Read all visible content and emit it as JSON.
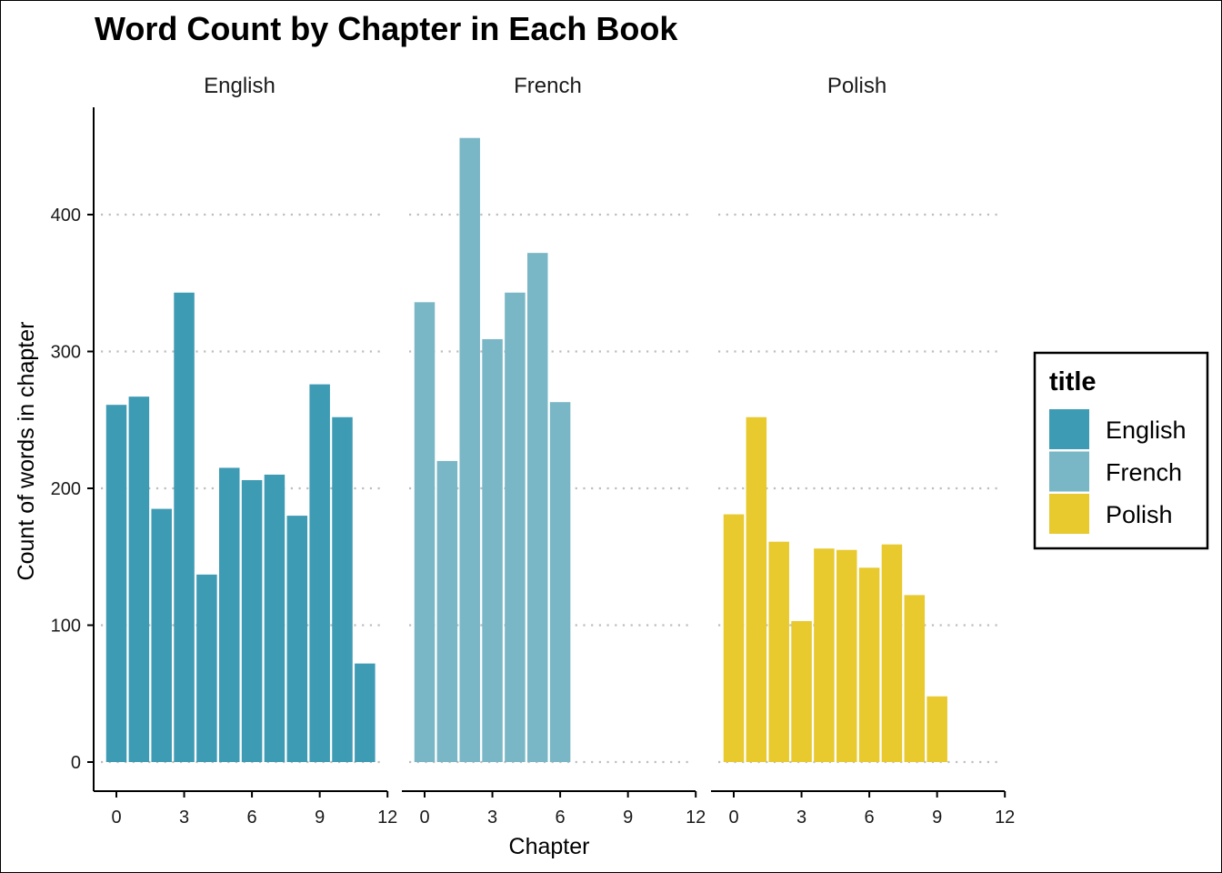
{
  "chart_data": {
    "type": "bar",
    "title": "Word Count by Chapter in Each Book",
    "xlabel": "Chapter",
    "ylabel": "Count of words in chapter",
    "xlim": [
      -0.75,
      12
    ],
    "ylim": [
      -20,
      480
    ],
    "x_ticks": [
      0,
      3,
      6,
      9,
      12
    ],
    "y_ticks": [
      0,
      100,
      200,
      300,
      400
    ],
    "grid": "horizontal dotted",
    "legend": {
      "title": "title",
      "placement": "right",
      "items": [
        {
          "label": "English",
          "color": "#3E9BB4"
        },
        {
          "label": "French",
          "color": "#7AB7C6"
        },
        {
          "label": "Polish",
          "color": "#E8C92E"
        }
      ]
    },
    "facets": [
      {
        "name": "English",
        "color": "#3E9BB4",
        "x": [
          0,
          1,
          2,
          3,
          4,
          5,
          6,
          7,
          8,
          9,
          10,
          11
        ],
        "values": [
          261,
          267,
          185,
          343,
          137,
          215,
          206,
          210,
          180,
          276,
          252,
          72
        ]
      },
      {
        "name": "French",
        "color": "#7AB7C6",
        "x": [
          0,
          1,
          2,
          3,
          4,
          5,
          6
        ],
        "values": [
          336,
          220,
          456,
          309,
          343,
          372,
          263
        ]
      },
      {
        "name": "Polish",
        "color": "#E8C92E",
        "x": [
          0,
          1,
          2,
          3,
          4,
          5,
          6,
          7,
          8,
          9
        ],
        "values": [
          181,
          252,
          161,
          103,
          156,
          155,
          142,
          159,
          122,
          48
        ]
      }
    ]
  }
}
